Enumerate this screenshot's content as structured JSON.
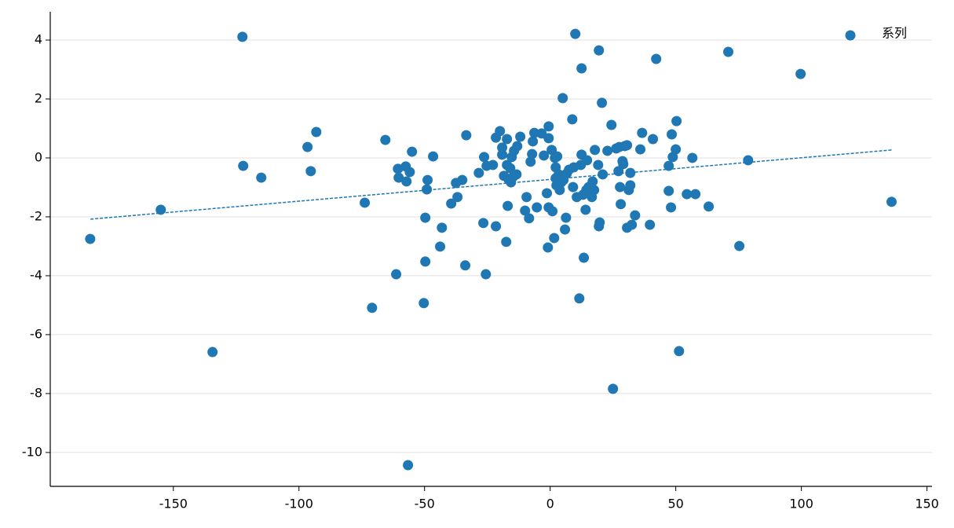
{
  "chart_data": {
    "type": "scatter",
    "series": [
      {
        "name": "系列",
        "color": "#1f77b4",
        "x": [
          -183.1,
          -155,
          -134.4,
          -122.5,
          -122.2,
          -115,
          -96.6,
          -95.3,
          -93.1,
          -73.8,
          -70.9,
          -65.6,
          -61.3,
          -60.6,
          -60.3,
          -57.5,
          -57.2,
          -56.6,
          -55.9,
          -55,
          -50.3,
          -49.7,
          -49.7,
          -49.1,
          -48.8,
          -46.6,
          -43.8,
          -43.1,
          -39.4,
          -37.5,
          -36.9,
          -35,
          -33.8,
          -33.4,
          -28.4,
          -26.6,
          -26.3,
          -25.6,
          -25.3,
          -22.8,
          -21.6,
          -21.6,
          -20,
          -19.1,
          -19.1,
          -18.4,
          -17.5,
          -17.2,
          -17.2,
          -16.9,
          -16.6,
          -15.9,
          -15.6,
          -15.3,
          -14.7,
          -14.4,
          -13.4,
          -13.1,
          -11.9,
          -10,
          -9.4,
          -8.4,
          -7.8,
          -7.2,
          -6.9,
          -6.3,
          -5.3,
          -3.4,
          -2.5,
          -1.3,
          -0.9,
          -0.6,
          -0.6,
          -0.6,
          0.6,
          0.9,
          1.6,
          1.9,
          2.2,
          2.2,
          2.5,
          2.8,
          3.4,
          3.8,
          4.4,
          5,
          5.3,
          5.9,
          6.3,
          6.6,
          7.5,
          8.8,
          9.1,
          9.4,
          10,
          10.6,
          11.6,
          12.2,
          12.5,
          12.5,
          13.1,
          13.4,
          14.1,
          14.4,
          14.7,
          15.3,
          15.9,
          16.6,
          16.9,
          17.5,
          17.8,
          19.1,
          19.4,
          19.4,
          19.7,
          20.6,
          20.9,
          22.8,
          24.4,
          25,
          26.3,
          27.2,
          27.5,
          27.8,
          28.1,
          28.8,
          29.1,
          29.7,
          30.6,
          30.6,
          31.3,
          31.9,
          31.9,
          32.5,
          33.8,
          35.9,
          36.6,
          39.7,
          40.9,
          42.2,
          47.2,
          47.2,
          48.1,
          48.4,
          48.8,
          50,
          50.3,
          51.3,
          54.4,
          56.6,
          57.8,
          63.1,
          70.9,
          75.3,
          78.8,
          99.7,
          135.9
        ],
        "y": [
          -2.75,
          -1.76,
          -6.59,
          4.11,
          -0.27,
          -0.67,
          0.37,
          -0.45,
          0.88,
          -1.52,
          -5.09,
          0.61,
          -3.95,
          -0.37,
          -0.67,
          -0.29,
          -0.8,
          -10.43,
          -0.48,
          0.21,
          -4.93,
          -2.03,
          -3.52,
          -1.07,
          -0.75,
          0.05,
          -3.01,
          -2.37,
          -1.55,
          -0.85,
          -1.33,
          -0.75,
          -3.65,
          0.77,
          -0.51,
          -2.21,
          0.03,
          -3.95,
          -0.27,
          -0.24,
          -2.32,
          0.69,
          0.91,
          0.35,
          0.11,
          -0.61,
          -2.85,
          0.64,
          -0.24,
          -1.63,
          -0.72,
          -0.35,
          -0.83,
          0.03,
          -0.64,
          0.24,
          -0.56,
          0.4,
          0.72,
          -1.79,
          -1.33,
          -2.05,
          -0.13,
          0.13,
          0.56,
          0.85,
          -1.68,
          0.83,
          0.08,
          -1.2,
          -3.04,
          1.07,
          0.67,
          -1.68,
          0.27,
          -1.81,
          -2.72,
          0,
          -0.32,
          -0.69,
          -0.93,
          0.05,
          -0.56,
          -1.09,
          -0.83,
          2.03,
          -0.75,
          -2.43,
          -2.03,
          -0.53,
          -0.4,
          1.31,
          -0.99,
          -0.32,
          4.21,
          -1.33,
          -4.77,
          -0.24,
          3.04,
          0.11,
          -1.25,
          -3.39,
          -1.76,
          -1.09,
          -0.08,
          -0.99,
          -1.17,
          -1.33,
          -0.8,
          -1.09,
          0.27,
          -0.24,
          3.65,
          -2.32,
          -2.19,
          1.87,
          -0.56,
          0.24,
          1.12,
          -7.84,
          0.32,
          -0.45,
          0.37,
          -0.99,
          -1.57,
          -0.11,
          -0.21,
          0.4,
          0.43,
          -2.37,
          -1.09,
          -0.93,
          -0.51,
          -2.27,
          -1.95,
          0.29,
          0.85,
          -2.27,
          0.64,
          3.36,
          -0.27,
          -1.12,
          -1.68,
          0.8,
          0.03,
          0.29,
          1.25,
          -6.56,
          -1.23,
          0,
          -1.23,
          -1.65,
          3.6,
          -2.99,
          -0.08,
          2.85,
          -1.49
        ]
      }
    ],
    "trendline": {
      "color": "#1f77b4",
      "x": [
        -183,
        136
      ],
      "y": [
        -2.08,
        0.27
      ]
    },
    "xlim": [
      -199,
      152
    ],
    "ylim": [
      -11.15,
      4.96
    ],
    "xticks": [
      -150,
      -100,
      -50,
      0,
      50,
      100,
      150
    ],
    "yticks": [
      -10,
      -8,
      -6,
      -4,
      -2,
      0,
      2,
      4
    ],
    "grid": true,
    "legend": "upper right"
  }
}
